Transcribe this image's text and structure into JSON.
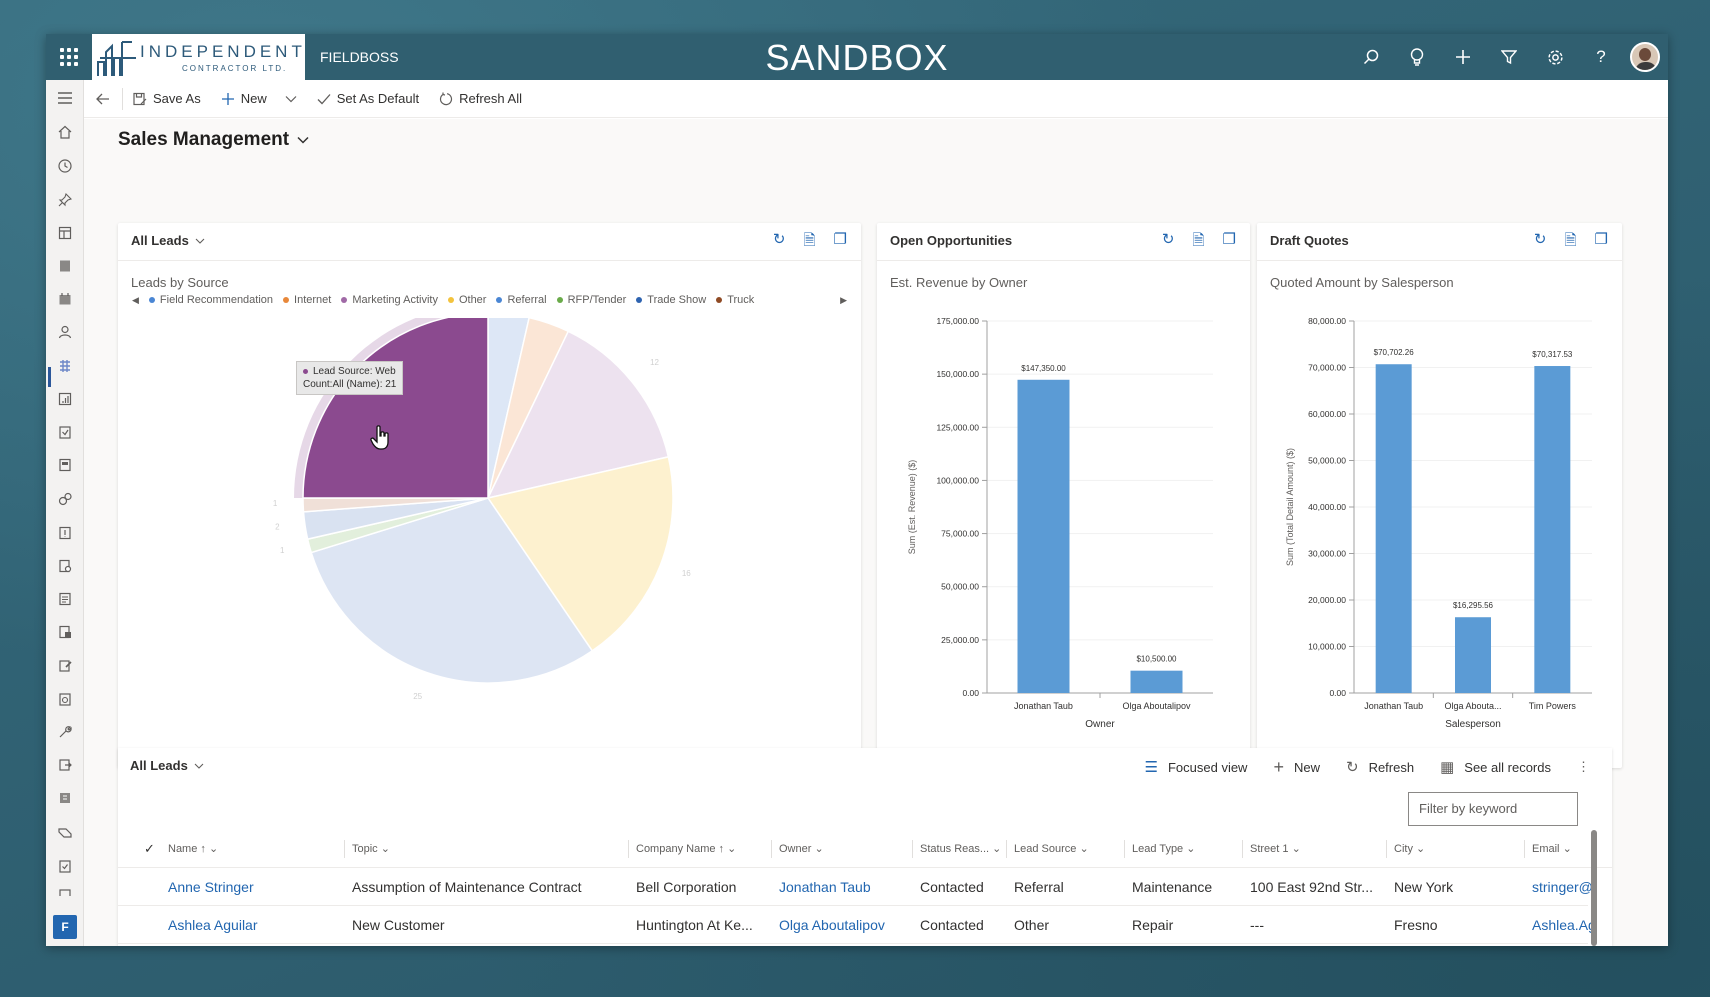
{
  "topbar": {
    "logo_line1": "INDEPENDENT",
    "logo_line2": "CONTRACTOR LTD.",
    "app_name": "FIELDBOSS",
    "environment": "SANDBOX",
    "icons": [
      "search-icon",
      "lightbulb-icon",
      "plus-icon",
      "filter-icon",
      "gear-icon",
      "help-icon"
    ]
  },
  "commands": {
    "save_as": "Save As",
    "new": "New",
    "set_default": "Set As Default",
    "refresh_all": "Refresh All"
  },
  "page": {
    "title": "Sales Management"
  },
  "leads_chart": {
    "view": "All Leads",
    "subtitle": "Leads by Source",
    "tooltip_line1": "Lead Source: Web",
    "tooltip_line2": "Count:All (Name): 21",
    "legend": [
      {
        "label": "Field Recommendation",
        "color": "#4a86d4"
      },
      {
        "label": "Internet",
        "color": "#e8883a"
      },
      {
        "label": "Marketing Activity",
        "color": "#a069a6"
      },
      {
        "label": "Other",
        "color": "#f3c33d"
      },
      {
        "label": "Referral",
        "color": "#4a86d4"
      },
      {
        "label": "RFP/Tender",
        "color": "#6aab4a"
      },
      {
        "label": "Trade Show",
        "color": "#2e63b0"
      },
      {
        "label": "Truck",
        "color": "#8f4a24"
      }
    ]
  },
  "chart_data": [
    {
      "type": "pie",
      "title": "Leads by Source",
      "slices": [
        {
          "label": "Web",
          "value": 21,
          "color": "#8b4a8f"
        },
        {
          "label": "Field Recommendation",
          "value": 3,
          "color": "#dde7f6"
        },
        {
          "label": "Internet",
          "value": 3,
          "color": "#fbe6d6"
        },
        {
          "label": "Marketing Activity",
          "value": 12,
          "color": "#ede2ef"
        },
        {
          "label": "Other",
          "value": 16,
          "color": "#fdf1cf"
        },
        {
          "label": "Referral",
          "value": 25,
          "color": "#dde5f3"
        },
        {
          "label": "RFP/Tender",
          "value": 1,
          "color": "#e2efdc"
        },
        {
          "label": "Trade Show",
          "value": 2,
          "color": "#d9e2f1"
        },
        {
          "label": "Truck",
          "value": 1,
          "color": "#f0e0d8"
        }
      ]
    },
    {
      "type": "bar",
      "card_title": "Open Opportunities",
      "title": "Est. Revenue by Owner",
      "categories": [
        "Jonathan Taub",
        "Olga Aboutalipov"
      ],
      "values": [
        147350,
        10500
      ],
      "data_labels": [
        "$147,350.00",
        "$10,500.00"
      ],
      "xlabel": "Owner",
      "ylabel": "Sum (Est. Revenue) ($)",
      "ylim": [
        0,
        175000
      ],
      "yticks": [
        0,
        25000,
        50000,
        75000,
        100000,
        125000,
        150000,
        175000
      ],
      "ytick_labels": [
        "0.00",
        "25,000.00",
        "50,000.00",
        "75,000.00",
        "100,000.00",
        "125,000.00",
        "150,000.00",
        "175,000.00"
      ],
      "color": "#5b9bd5"
    },
    {
      "type": "bar",
      "card_title": "Draft Quotes",
      "title": "Quoted Amount by Salesperson",
      "categories": [
        "Jonathan Taub",
        "Olga Abouta...",
        "Tim Powers"
      ],
      "values": [
        70702.26,
        16295.56,
        70317.53
      ],
      "data_labels": [
        "$70,702.26",
        "$16,295.56",
        "$70,317.53"
      ],
      "xlabel": "Salesperson",
      "ylabel": "Sum (Total Detail Amount) ($)",
      "ylim": [
        0,
        80000
      ],
      "yticks": [
        0,
        10000,
        20000,
        30000,
        40000,
        50000,
        60000,
        70000,
        80000
      ],
      "ytick_labels": [
        "0.00",
        "10,000.00",
        "20,000.00",
        "30,000.00",
        "40,000.00",
        "50,000.00",
        "60,000.00",
        "70,000.00",
        "80,000.00"
      ],
      "color": "#5b9bd5"
    }
  ],
  "grid": {
    "view": "All Leads",
    "focused_view": "Focused view",
    "new": "New",
    "refresh": "Refresh",
    "see_all": "See all records",
    "filter_placeholder": "Filter by keyword",
    "columns": [
      "Name",
      "Topic",
      "Company Name",
      "Owner",
      "Status Reas...",
      "Lead Source",
      "Lead Type",
      "Street 1",
      "City",
      "Email"
    ],
    "rows": [
      [
        "Anne Stringer",
        "Assumption of Maintenance Contract",
        "Bell Corporation",
        "Jonathan Taub",
        "Contacted",
        "Referral",
        "Maintenance",
        "100 East 92nd Str...",
        "New York",
        "stringer@"
      ],
      [
        "Ashlea Aguilar",
        "New Customer",
        "Huntington At Ke...",
        "Olga Aboutalipov",
        "Contacted",
        "Other",
        "Repair",
        "---",
        "Fresno",
        "Ashlea.Ag"
      ]
    ]
  }
}
